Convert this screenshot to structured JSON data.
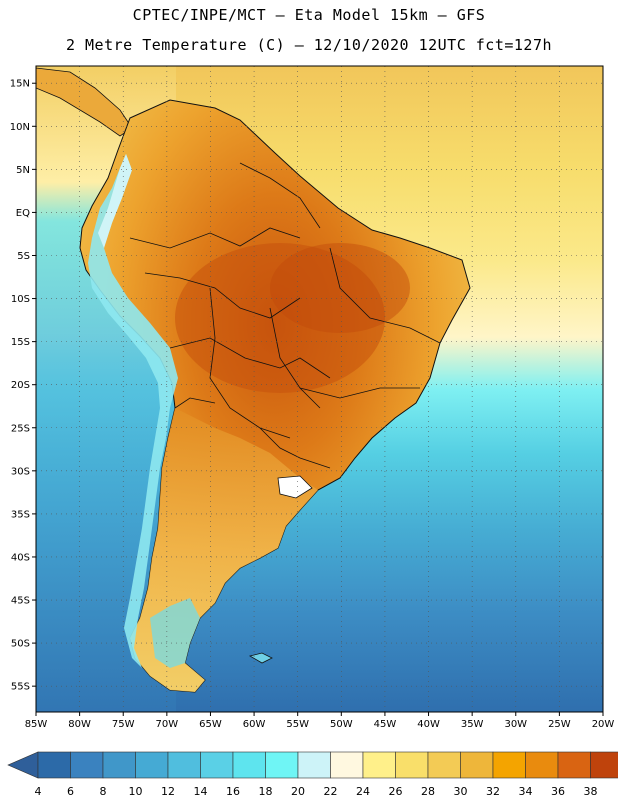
{
  "header": {
    "line1": "CPTEC/INPE/MCT –  Eta Model 15km – GFS",
    "line2": "2 Metre Temperature (C) – 12/10/2020 12UTC fct=127h"
  },
  "map": {
    "lat_labels": [
      "15N",
      "10N",
      "5N",
      "EQ",
      "5S",
      "10S",
      "15S",
      "20S",
      "25S",
      "30S",
      "35S",
      "40S",
      "45S",
      "50S",
      "55S"
    ],
    "lon_labels": [
      "85W",
      "80W",
      "75W",
      "70W",
      "65W",
      "60W",
      "55W",
      "50W",
      "45W",
      "40W",
      "35W",
      "30W",
      "25W",
      "20W"
    ],
    "lat_range": [
      17,
      -58
    ],
    "lon_range": [
      -85,
      -20
    ]
  },
  "colorbar": {
    "values": [
      "4",
      "6",
      "8",
      "10",
      "12",
      "14",
      "16",
      "18",
      "20",
      "22",
      "24",
      "26",
      "28",
      "30",
      "32",
      "34",
      "36",
      "38"
    ],
    "colors": [
      "#2c6aa8",
      "#3a82bf",
      "#4097c9",
      "#45aad4",
      "#50bede",
      "#5ad0e6",
      "#5ee4ee",
      "#6ff5f5",
      "#cdf3f8",
      "#fff8e0",
      "#fff08a",
      "#f9df6a",
      "#f3cb55",
      "#eeb63a",
      "#f4a400",
      "#e98b0e",
      "#d96412",
      "#bf430c"
    ],
    "arrow_left": "#2f5f9a",
    "arrow_right": "#b8400c"
  }
}
